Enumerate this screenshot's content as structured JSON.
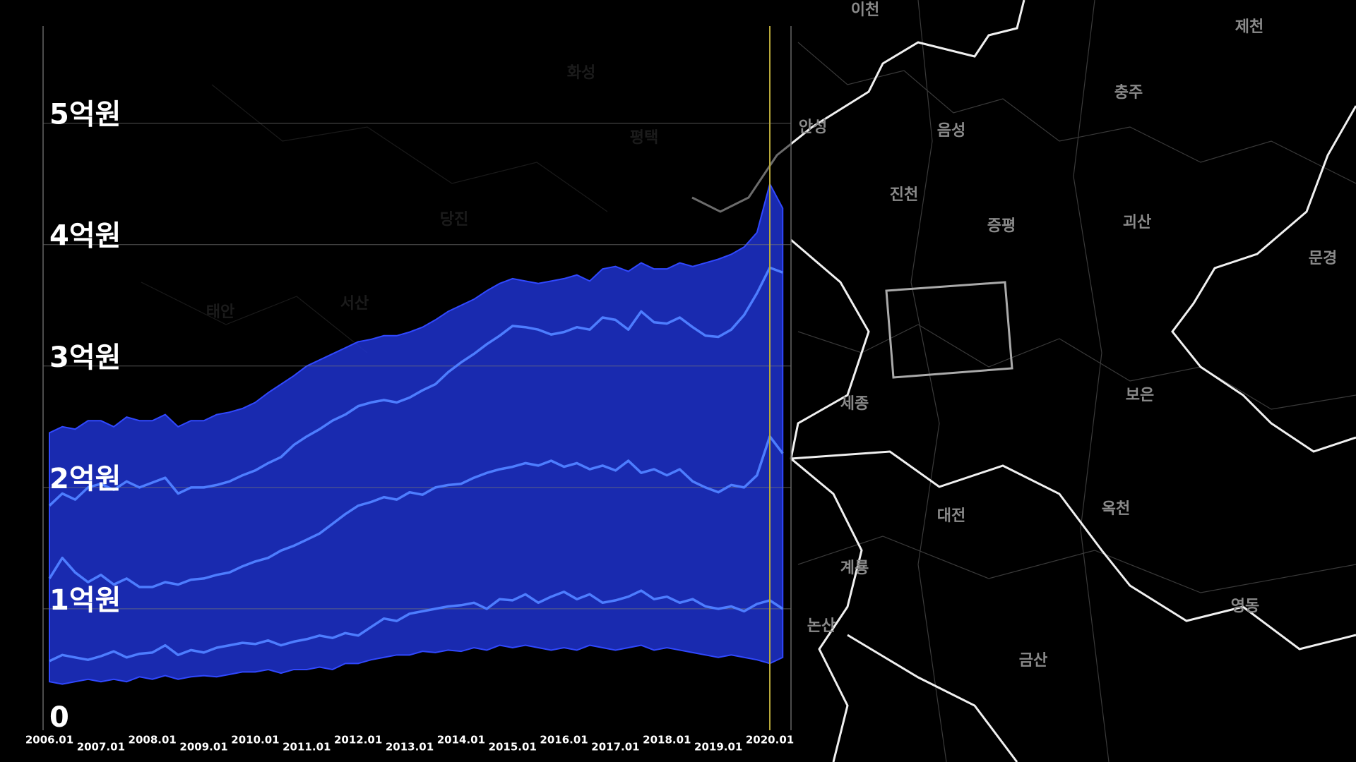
{
  "chart_data": {
    "type": "line",
    "x": [
      "2006.01",
      "2006.04",
      "2006.07",
      "2006.10",
      "2007.01",
      "2007.04",
      "2007.07",
      "2007.10",
      "2008.01",
      "2008.04",
      "2008.07",
      "2008.10",
      "2009.01",
      "2009.04",
      "2009.07",
      "2009.10",
      "2010.01",
      "2010.04",
      "2010.07",
      "2010.10",
      "2011.01",
      "2011.04",
      "2011.07",
      "2011.10",
      "2012.01",
      "2012.04",
      "2012.07",
      "2012.10",
      "2013.01",
      "2013.04",
      "2013.07",
      "2013.10",
      "2014.01",
      "2014.04",
      "2014.07",
      "2014.10",
      "2015.01",
      "2015.04",
      "2015.07",
      "2015.10",
      "2016.01",
      "2016.04",
      "2016.07",
      "2016.10",
      "2017.01",
      "2017.04",
      "2017.07",
      "2017.10",
      "2018.01",
      "2018.04",
      "2018.07",
      "2018.10",
      "2019.01",
      "2019.04",
      "2019.07",
      "2019.10",
      "2020.01",
      "2020.04"
    ],
    "xticks": [
      "2006.01",
      "2007.01",
      "2008.01",
      "2009.01",
      "2010.01",
      "2011.01",
      "2012.01",
      "2013.01",
      "2014.01",
      "2015.01",
      "2016.01",
      "2017.01",
      "2018.01",
      "2019.01",
      "2020.01"
    ],
    "series": [
      {
        "color": "#4d7dff",
        "values": [
          1.85,
          1.95,
          1.9,
          2.0,
          2.03,
          1.98,
          2.05,
          2.0,
          2.04,
          2.08,
          1.95,
          2.0,
          2.0,
          2.02,
          2.05,
          2.1,
          2.14,
          2.2,
          2.25,
          2.35,
          2.42,
          2.48,
          2.55,
          2.6,
          2.67,
          2.7,
          2.72,
          2.7,
          2.74,
          2.8,
          2.85,
          2.95,
          3.03,
          3.1,
          3.18,
          3.25,
          3.33,
          3.32,
          3.3,
          3.26,
          3.28,
          3.32,
          3.3,
          3.4,
          3.38,
          3.3,
          3.45,
          3.36,
          3.35,
          3.4,
          3.32,
          3.25,
          3.24,
          3.3,
          3.42,
          3.6,
          3.81,
          3.77
        ]
      },
      {
        "color": "#4d7dff",
        "values": [
          1.25,
          1.42,
          1.3,
          1.22,
          1.28,
          1.2,
          1.25,
          1.18,
          1.18,
          1.22,
          1.2,
          1.24,
          1.25,
          1.28,
          1.3,
          1.35,
          1.39,
          1.42,
          1.48,
          1.52,
          1.57,
          1.62,
          1.7,
          1.78,
          1.85,
          1.88,
          1.92,
          1.9,
          1.96,
          1.94,
          2.0,
          2.02,
          2.03,
          2.08,
          2.12,
          2.15,
          2.17,
          2.2,
          2.18,
          2.22,
          2.17,
          2.2,
          2.15,
          2.18,
          2.14,
          2.22,
          2.12,
          2.15,
          2.1,
          2.15,
          2.05,
          2.0,
          1.96,
          2.02,
          2.0,
          2.1,
          2.42,
          2.28
        ]
      },
      {
        "color": "#4d7dff",
        "values": [
          0.57,
          0.62,
          0.6,
          0.58,
          0.61,
          0.65,
          0.6,
          0.63,
          0.64,
          0.7,
          0.62,
          0.66,
          0.64,
          0.68,
          0.7,
          0.72,
          0.71,
          0.74,
          0.7,
          0.73,
          0.75,
          0.78,
          0.76,
          0.8,
          0.78,
          0.85,
          0.92,
          0.9,
          0.96,
          0.98,
          1.0,
          1.02,
          1.03,
          1.05,
          1.0,
          1.08,
          1.07,
          1.12,
          1.05,
          1.1,
          1.14,
          1.08,
          1.12,
          1.05,
          1.07,
          1.1,
          1.15,
          1.08,
          1.1,
          1.05,
          1.08,
          1.02,
          1.0,
          1.02,
          0.98,
          1.04,
          1.07,
          1.0
        ]
      }
    ],
    "band": {
      "color": "#1f33d6",
      "low": [
        0.4,
        0.38,
        0.4,
        0.42,
        0.4,
        0.42,
        0.4,
        0.44,
        0.42,
        0.45,
        0.42,
        0.44,
        0.45,
        0.44,
        0.46,
        0.48,
        0.48,
        0.5,
        0.47,
        0.5,
        0.5,
        0.52,
        0.5,
        0.55,
        0.55,
        0.58,
        0.6,
        0.62,
        0.62,
        0.65,
        0.64,
        0.66,
        0.65,
        0.68,
        0.66,
        0.7,
        0.68,
        0.7,
        0.68,
        0.66,
        0.68,
        0.66,
        0.7,
        0.68,
        0.66,
        0.68,
        0.7,
        0.66,
        0.68,
        0.66,
        0.64,
        0.62,
        0.6,
        0.62,
        0.6,
        0.58,
        0.55,
        0.6
      ],
      "high": [
        2.45,
        2.5,
        2.48,
        2.55,
        2.55,
        2.5,
        2.58,
        2.55,
        2.55,
        2.6,
        2.5,
        2.55,
        2.55,
        2.6,
        2.62,
        2.65,
        2.7,
        2.78,
        2.85,
        2.92,
        3.0,
        3.05,
        3.1,
        3.15,
        3.2,
        3.22,
        3.25,
        3.25,
        3.28,
        3.32,
        3.38,
        3.45,
        3.5,
        3.55,
        3.62,
        3.68,
        3.72,
        3.7,
        3.68,
        3.7,
        3.72,
        3.75,
        3.7,
        3.8,
        3.82,
        3.78,
        3.85,
        3.8,
        3.8,
        3.85,
        3.82,
        3.85,
        3.88,
        3.92,
        3.98,
        4.1,
        4.5,
        4.3
      ]
    },
    "ylim": [
      0,
      5.8
    ],
    "yticks": [
      0,
      {
        "value": 1,
        "label": "1억원"
      },
      {
        "value": 2,
        "label": "2억원"
      },
      {
        "value": 3,
        "label": "3억원"
      },
      {
        "value": 4,
        "label": "4억원"
      },
      {
        "value": 5,
        "label": "5억원"
      }
    ],
    "grid": true
  },
  "map": {
    "labels": [
      "이천",
      "제천",
      "충주",
      "안성",
      "음성",
      "진천",
      "증평",
      "괴산",
      "문경",
      "세종",
      "보은",
      "대전",
      "옥천",
      "계룡",
      "논산",
      "금산",
      "영동",
      "화성",
      "평택",
      "당진",
      "태안",
      "서산"
    ]
  }
}
